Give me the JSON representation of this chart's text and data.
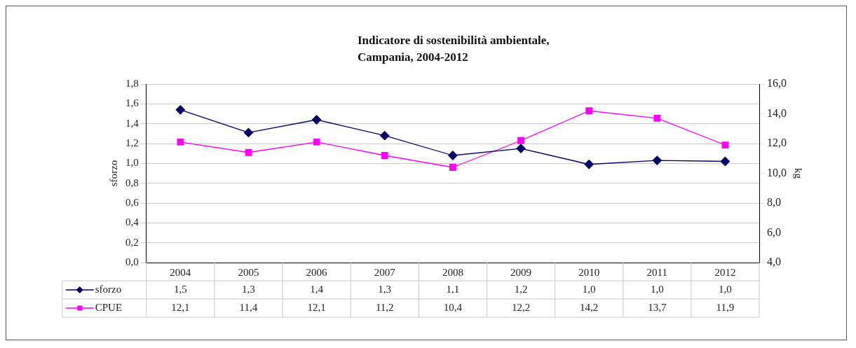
{
  "chart_data": {
    "type": "line",
    "title": "Indicatore di sostenibilità ambientale,\nCampania, 2004-2012",
    "ylabel": "sforzo",
    "y2label": "kg",
    "categories": [
      "2004",
      "2005",
      "2006",
      "2007",
      "2008",
      "2009",
      "2010",
      "2011",
      "2012"
    ],
    "series": [
      {
        "name": "sforzo",
        "color": "#000066",
        "marker": "diamond",
        "values": [
          1.54,
          1.31,
          1.44,
          1.28,
          1.08,
          1.15,
          0.99,
          1.03,
          1.02
        ],
        "value_labels": [
          "1,5",
          "1,3",
          "1,4",
          "1,3",
          "1,1",
          "1,2",
          "1,0",
          "1,0",
          "1,0"
        ]
      },
      {
        "name": "CPUE",
        "color": "#ff00ff",
        "marker": "square",
        "axis": "y2",
        "values": [
          12.1,
          11.4,
          12.1,
          11.2,
          10.4,
          12.2,
          14.2,
          13.7,
          11.9
        ],
        "value_labels": [
          "12,1",
          "11,4",
          "12,1",
          "11,2",
          "10,4",
          "12,2",
          "14,2",
          "13,7",
          "11,9"
        ]
      }
    ],
    "ylim": [
      0,
      1.8
    ],
    "yticks": [
      {
        "value": 0,
        "label": "0,0"
      },
      {
        "value": 0.2,
        "label": "0,2"
      },
      {
        "value": 0.4,
        "label": "0,4"
      },
      {
        "value": 0.6,
        "label": "0,6"
      },
      {
        "value": 0.8,
        "label": "0,8"
      },
      {
        "value": 1.0,
        "label": "1,0"
      },
      {
        "value": 1.2,
        "label": "1,2"
      },
      {
        "value": 1.4,
        "label": "1,4"
      },
      {
        "value": 1.6,
        "label": "1,6"
      },
      {
        "value": 1.8,
        "label": "1,8"
      }
    ],
    "y2lim": [
      4,
      16
    ],
    "y2ticks": [
      {
        "value": 4,
        "label": "4,0"
      },
      {
        "value": 6,
        "label": "6,0"
      },
      {
        "value": 8,
        "label": "8,0"
      },
      {
        "value": 10,
        "label": "10,0"
      },
      {
        "value": 12,
        "label": "12,0"
      },
      {
        "value": 14,
        "label": "14,0"
      },
      {
        "value": 16,
        "label": "16,0"
      }
    ],
    "grid": "y",
    "legend": "bottom left",
    "line_style": "solid"
  }
}
